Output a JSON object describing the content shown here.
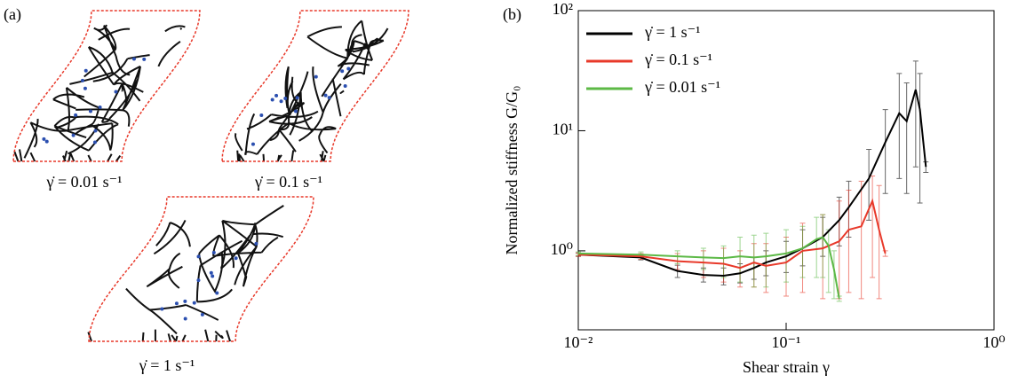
{
  "panel_a": {
    "label": "(a)",
    "captions": [
      "γ̇ = 0.01 s⁻¹",
      "γ̇ = 0.1 s⁻¹",
      "γ̇ = 1 s⁻¹"
    ]
  },
  "chart_data": {
    "type": "line",
    "label": "(b)",
    "xlabel": "Shear strain γ",
    "ylabel": "Normalized stiffness G/G₀",
    "xscale": "log",
    "yscale": "log",
    "xlim": [
      0.01,
      1
    ],
    "ylim": [
      0.22,
      100
    ],
    "xticks": [
      {
        "value": 0.01,
        "label": "10⁻²"
      },
      {
        "value": 0.1,
        "label": "10⁻¹"
      },
      {
        "value": 1,
        "label": "10⁰"
      }
    ],
    "yticks": [
      {
        "value": 1,
        "label": "10⁰"
      },
      {
        "value": 10,
        "label": "10¹"
      },
      {
        "value": 100,
        "label": "10²"
      }
    ],
    "legend": "upper left",
    "series": [
      {
        "name": "γ̇ = 1 s⁻¹",
        "color": "#000000",
        "x": [
          0.01,
          0.02,
          0.03,
          0.04,
          0.05,
          0.06,
          0.07,
          0.08,
          0.1,
          0.12,
          0.15,
          0.18,
          0.2,
          0.25,
          0.3,
          0.35,
          0.38,
          0.42,
          0.44,
          0.47
        ],
        "values": [
          0.93,
          0.88,
          0.68,
          0.63,
          0.62,
          0.65,
          0.72,
          0.8,
          0.9,
          1.05,
          1.3,
          1.8,
          2.3,
          4,
          8,
          14,
          12,
          22,
          15,
          5
        ],
        "yerr_low": [
          0.9,
          0.84,
          0.6,
          0.55,
          0.52,
          0.54,
          0.58,
          0.62,
          0.66,
          0.75,
          0.9,
          1.1,
          1.3,
          1.8,
          3,
          4,
          3,
          5,
          2.5,
          4.5
        ],
        "yerr_high": [
          0.96,
          0.92,
          0.76,
          0.72,
          0.72,
          0.78,
          0.88,
          1.0,
          1.2,
          1.5,
          1.9,
          2.8,
          3.8,
          7,
          15,
          30,
          25,
          38,
          30,
          5.5
        ]
      },
      {
        "name": "γ̇ = 0.1 s⁻¹",
        "color": "#e8392a",
        "x": [
          0.01,
          0.02,
          0.03,
          0.04,
          0.05,
          0.06,
          0.07,
          0.08,
          0.1,
          0.12,
          0.15,
          0.18,
          0.2,
          0.23,
          0.26,
          0.28,
          0.3
        ],
        "values": [
          0.93,
          0.9,
          0.82,
          0.8,
          0.78,
          0.72,
          0.8,
          0.75,
          0.8,
          1.0,
          1.05,
          1.2,
          1.5,
          1.6,
          2.6,
          1.5,
          0.95
        ],
        "yerr_low": [
          0.9,
          0.85,
          0.7,
          0.6,
          0.55,
          0.5,
          0.5,
          0.45,
          0.42,
          0.45,
          0.4,
          0.4,
          0.45,
          0.4,
          0.6,
          0.4,
          0.9
        ],
        "yerr_high": [
          0.96,
          0.95,
          0.95,
          1.0,
          1.05,
          1.0,
          1.15,
          1.15,
          1.3,
          1.7,
          2.0,
          2.6,
          3.2,
          3.8,
          4.2,
          3.5,
          1.0
        ]
      },
      {
        "name": "γ̇ = 0.01 s⁻¹",
        "color": "#5cb946",
        "x": [
          0.01,
          0.02,
          0.03,
          0.04,
          0.05,
          0.06,
          0.07,
          0.08,
          0.1,
          0.12,
          0.14,
          0.15,
          0.16,
          0.17,
          0.18
        ],
        "values": [
          0.95,
          0.93,
          0.9,
          0.88,
          0.87,
          0.9,
          0.88,
          0.9,
          0.95,
          1.05,
          1.25,
          1.3,
          1.1,
          0.7,
          0.4
        ],
        "yerr_low": [
          0.92,
          0.88,
          0.78,
          0.7,
          0.6,
          0.55,
          0.5,
          0.5,
          0.55,
          0.6,
          0.6,
          0.6,
          0.45,
          0.4,
          0.38
        ],
        "yerr_high": [
          0.98,
          0.98,
          1.0,
          1.05,
          1.1,
          1.3,
          1.35,
          1.4,
          1.5,
          1.6,
          1.9,
          2.0,
          1.5,
          1.0,
          0.42
        ]
      }
    ]
  }
}
